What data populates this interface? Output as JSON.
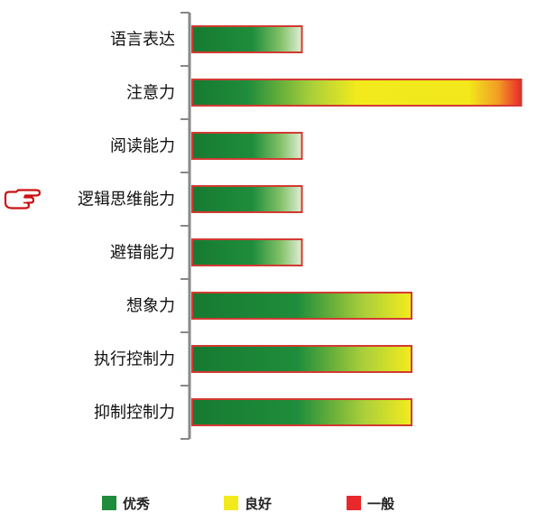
{
  "chart_data": {
    "type": "bar",
    "orientation": "horizontal",
    "categories": [
      "语言表达",
      "注意力",
      "阅读能力",
      "逻辑思维能力",
      "避错能力",
      "想象力",
      "执行控制力",
      "抑制控制力"
    ],
    "values": [
      1,
      3,
      1,
      1,
      1,
      2,
      2,
      2
    ],
    "xlim": [
      0,
      3
    ],
    "level_scale": [
      "优秀",
      "良好",
      "一般"
    ],
    "highlighted_category": "逻辑思维能力",
    "legend": [
      {
        "label": "优秀",
        "color": "#1e8c3a"
      },
      {
        "label": "良好",
        "color": "#f2ea1d"
      },
      {
        "label": "一般",
        "color": "#e8282a"
      }
    ],
    "legend_position": "bottom",
    "grid": false
  },
  "colors": {
    "excellent": "#1e8c3a",
    "good": "#f2ea1d",
    "fair": "#e8282a",
    "bar_border": "#d23a32",
    "axis": "#888888",
    "pointer": "#cc1111"
  },
  "icons": {
    "pointer": "pointing-hand-icon"
  }
}
